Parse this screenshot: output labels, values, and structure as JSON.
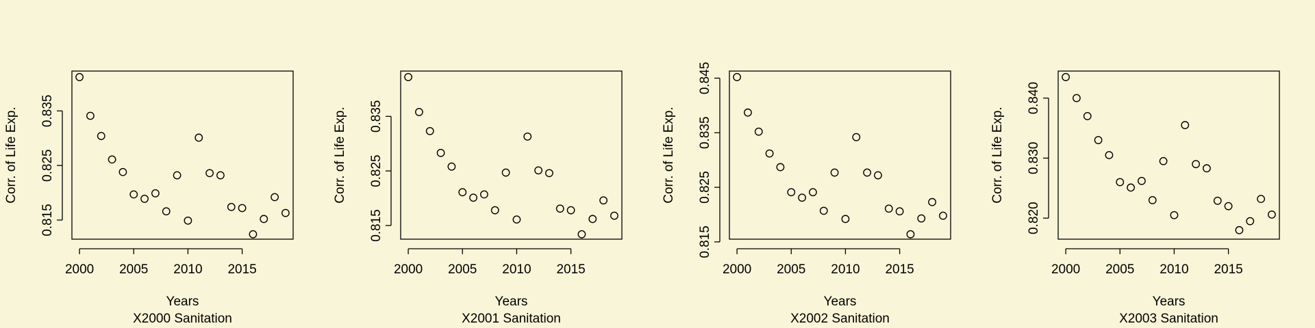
{
  "figure": {
    "background": "#f8f5d8"
  },
  "chart_data": [
    {
      "type": "scatter",
      "xlabel": "Years",
      "subtitle": "X2000 Sanitation",
      "ylabel": "Corr. of Life Exp.",
      "xlim": [
        1999.3,
        2019.7
      ],
      "ylim": [
        0.8115,
        0.8423
      ],
      "xticks": [
        2000,
        2005,
        2010,
        2015
      ],
      "yticks": [
        0.815,
        0.825,
        0.835
      ],
      "x": [
        2000,
        2001,
        2002,
        2003,
        2004,
        2005,
        2006,
        2007,
        2008,
        2009,
        2010,
        2011,
        2012,
        2013,
        2014,
        2015,
        2016,
        2017,
        2018,
        2019
      ],
      "y": [
        0.8412,
        0.8341,
        0.8304,
        0.8261,
        0.8238,
        0.8197,
        0.8189,
        0.8199,
        0.8166,
        0.8232,
        0.8149,
        0.8301,
        0.8236,
        0.8232,
        0.8174,
        0.8172,
        0.8124,
        0.8152,
        0.8192,
        0.8163
      ],
      "marker": "open-circle",
      "grid": false
    },
    {
      "type": "scatter",
      "xlabel": "Years",
      "subtitle": "X2001 Sanitation",
      "ylabel": "Corr. of Life Exp.",
      "xlim": [
        1999.3,
        2019.7
      ],
      "ylim": [
        0.8125,
        0.8433
      ],
      "xticks": [
        2000,
        2005,
        2010,
        2015
      ],
      "yticks": [
        0.815,
        0.825,
        0.835
      ],
      "x": [
        2000,
        2001,
        2002,
        2003,
        2004,
        2005,
        2006,
        2007,
        2008,
        2009,
        2010,
        2011,
        2012,
        2013,
        2014,
        2015,
        2016,
        2017,
        2018,
        2019
      ],
      "y": [
        0.8422,
        0.8358,
        0.8323,
        0.8283,
        0.8258,
        0.8211,
        0.8201,
        0.8207,
        0.8178,
        0.8247,
        0.8161,
        0.8313,
        0.8251,
        0.8246,
        0.8181,
        0.8178,
        0.8134,
        0.8162,
        0.8196,
        0.8168
      ],
      "marker": "open-circle",
      "grid": false
    },
    {
      "type": "scatter",
      "xlabel": "Years",
      "subtitle": "X2002 Sanitation",
      "ylabel": "Corr. of Life Exp.",
      "xlim": [
        1999.3,
        2019.7
      ],
      "ylim": [
        0.8155,
        0.8463
      ],
      "xticks": [
        2000,
        2005,
        2010,
        2015
      ],
      "yticks": [
        0.815,
        0.825,
        0.835,
        0.845
      ],
      "x": [
        2000,
        2001,
        2002,
        2003,
        2004,
        2005,
        2006,
        2007,
        2008,
        2009,
        2010,
        2011,
        2012,
        2013,
        2014,
        2015,
        2016,
        2017,
        2018,
        2019
      ],
      "y": [
        0.8452,
        0.8387,
        0.8352,
        0.8312,
        0.8287,
        0.8241,
        0.8231,
        0.8241,
        0.8207,
        0.8277,
        0.8192,
        0.8342,
        0.8277,
        0.8272,
        0.8211,
        0.8206,
        0.8164,
        0.8193,
        0.8223,
        0.8198
      ],
      "marker": "open-circle",
      "grid": false
    },
    {
      "type": "scatter",
      "xlabel": "Years",
      "subtitle": "X2003 Sanitation",
      "ylabel": "Corr. of Life Exp.",
      "xlim": [
        1999.3,
        2019.7
      ],
      "ylim": [
        0.8165,
        0.8445
      ],
      "xticks": [
        2000,
        2005,
        2010,
        2015
      ],
      "yticks": [
        0.82,
        0.83,
        0.84
      ],
      "x": [
        2000,
        2001,
        2002,
        2003,
        2004,
        2005,
        2006,
        2007,
        2008,
        2009,
        2010,
        2011,
        2012,
        2013,
        2014,
        2015,
        2016,
        2017,
        2018,
        2019
      ],
      "y": [
        0.8435,
        0.84,
        0.837,
        0.833,
        0.8305,
        0.826,
        0.8251,
        0.8262,
        0.823,
        0.8295,
        0.8205,
        0.8355,
        0.829,
        0.8283,
        0.8229,
        0.822,
        0.818,
        0.8195,
        0.8232,
        0.8206
      ],
      "marker": "open-circle",
      "grid": false
    }
  ]
}
